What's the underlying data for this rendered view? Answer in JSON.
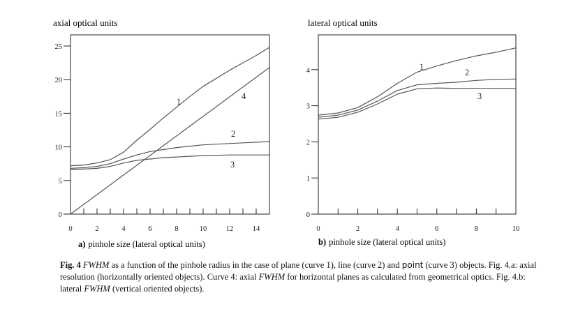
{
  "chart_data": [
    {
      "type": "line",
      "ylabel": "axial optical units",
      "panel_label": "a)",
      "xlabel": "pinhole size (lateral optical units)",
      "xlim": [
        0,
        15
      ],
      "ylim": [
        0,
        25
      ],
      "x_ticks": [
        0,
        2,
        4,
        6,
        8,
        10,
        12,
        14
      ],
      "y_ticks": [
        0,
        5,
        10,
        15,
        20,
        25
      ],
      "grid": false,
      "series": [
        {
          "name": "1",
          "x": [
            0,
            1,
            2,
            3,
            4,
            5,
            6,
            7,
            8,
            9,
            10,
            11,
            12,
            13,
            14,
            15
          ],
          "y": [
            7.2,
            7.3,
            7.6,
            8.1,
            9.2,
            11.0,
            12.6,
            14.3,
            15.9,
            17.5,
            19.0,
            20.2,
            21.4,
            22.5,
            23.6,
            24.8
          ]
        },
        {
          "name": "2",
          "x": [
            0,
            1,
            2,
            3,
            4,
            5,
            6,
            7,
            8,
            9,
            10,
            11,
            12,
            13,
            14,
            15
          ],
          "y": [
            6.8,
            6.9,
            7.1,
            7.5,
            8.2,
            8.8,
            9.3,
            9.6,
            9.9,
            10.1,
            10.3,
            10.4,
            10.5,
            10.6,
            10.7,
            10.8
          ]
        },
        {
          "name": "3",
          "x": [
            0,
            1,
            2,
            3,
            4,
            5,
            6,
            7,
            8,
            9,
            10,
            11,
            12,
            13,
            14,
            15
          ],
          "y": [
            6.6,
            6.7,
            6.8,
            7.1,
            7.6,
            8.0,
            8.2,
            8.4,
            8.5,
            8.6,
            8.7,
            8.75,
            8.8,
            8.8,
            8.8,
            8.8
          ]
        },
        {
          "name": "4",
          "x": [
            0,
            15
          ],
          "y": [
            0,
            21.8
          ]
        }
      ]
    },
    {
      "type": "line",
      "ylabel": "lateral optical units",
      "panel_label": "b)",
      "xlabel": "pinhole size (lateral optical units)",
      "xlim": [
        0,
        10
      ],
      "ylim": [
        0,
        5
      ],
      "x_ticks": [
        0,
        2,
        4,
        6,
        8,
        10
      ],
      "y_ticks": [
        0,
        1,
        2,
        3,
        4
      ],
      "grid": false,
      "series": [
        {
          "name": "1",
          "x": [
            0,
            1,
            2,
            3,
            4,
            5,
            6,
            7,
            8,
            9,
            10
          ],
          "y": [
            2.74,
            2.8,
            2.95,
            3.25,
            3.62,
            3.93,
            4.1,
            4.25,
            4.38,
            4.48,
            4.6
          ]
        },
        {
          "name": "2",
          "x": [
            0,
            1,
            2,
            3,
            4,
            5,
            6,
            7,
            8,
            9,
            10
          ],
          "y": [
            2.68,
            2.74,
            2.88,
            3.13,
            3.42,
            3.58,
            3.62,
            3.65,
            3.7,
            3.73,
            3.74
          ]
        },
        {
          "name": "3",
          "x": [
            0,
            1,
            2,
            3,
            4,
            5,
            6,
            7,
            8,
            9,
            10
          ],
          "y": [
            2.63,
            2.68,
            2.82,
            3.05,
            3.32,
            3.47,
            3.49,
            3.48,
            3.48,
            3.48,
            3.48
          ]
        }
      ]
    }
  ],
  "caption": {
    "fig_label": "Fig. 4",
    "part1": " as a function of the pinhole radius in the case of plane (curve 1), line (curve 2) and ",
    "point_word": "point",
    "part2": " (curve 3) objects. Fig. 4.a: axial resolution (horizontally oriented objects). Curve 4: axial ",
    "part3": " for horizontal planes as calculated from geometrical optics. Fig. 4.b: lateral ",
    "part4": " (vertical  oriented objects).",
    "fwhm": "FWHM"
  },
  "colors": {
    "axis": "#222222",
    "curve": "#555555"
  }
}
